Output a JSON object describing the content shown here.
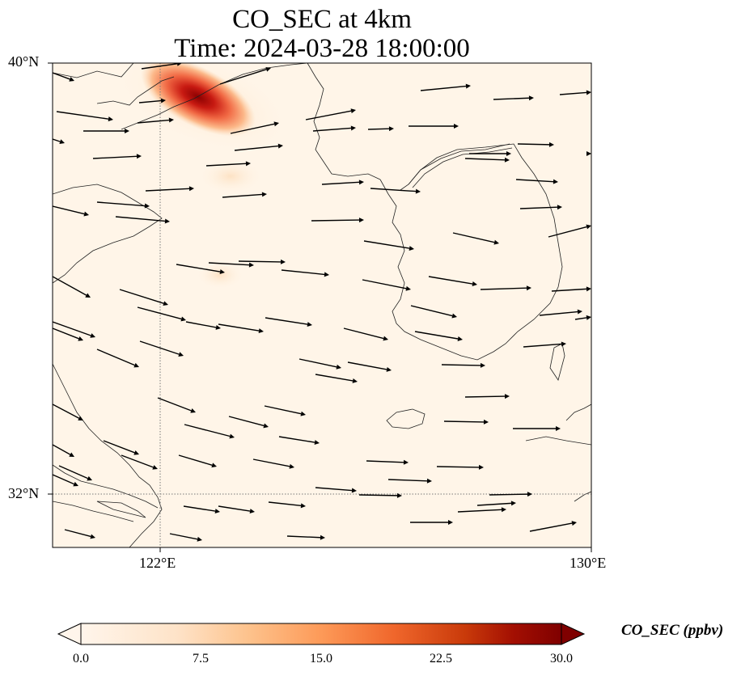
{
  "title": {
    "line1": "CO_SEC at 4km",
    "line2": "Time: 2024-03-28 18:00:00"
  },
  "map": {
    "variable": "CO_SEC",
    "level": "4km",
    "lon_range": [
      120.0,
      130.0
    ],
    "lat_range": [
      31.0,
      40.0
    ],
    "gridlines": {
      "lon": [
        122
      ],
      "lat": [
        32
      ],
      "style": "dotted"
    },
    "lat_ticks": [
      {
        "value": 40,
        "label": "40°N"
      },
      {
        "value": 32,
        "label": "32°N"
      }
    ],
    "lon_ticks": [
      {
        "value": 122,
        "label": "122°E"
      },
      {
        "value": 130,
        "label": "130°E"
      }
    ],
    "background_color": "#fff5e8",
    "plume": {
      "description": "CO maximum over northern Yellow Sea / Liaodong coast",
      "peak_ppbv": 30,
      "peak_lon": 122.7,
      "peak_lat": 39.6
    },
    "wind_direction": "westerly to west-northwesterly"
  },
  "colorbar": {
    "label": "CO_SEC (ppbv)",
    "min": 0.0,
    "max": 30.0,
    "ticks": [
      "0.0",
      "7.5",
      "15.0",
      "22.5",
      "30.0"
    ],
    "colors": [
      "#fff5eb",
      "#fdd9b4",
      "#fdae6b",
      "#f4743c",
      "#d94801",
      "#a30f02",
      "#7f0000"
    ],
    "extend": "both"
  }
}
